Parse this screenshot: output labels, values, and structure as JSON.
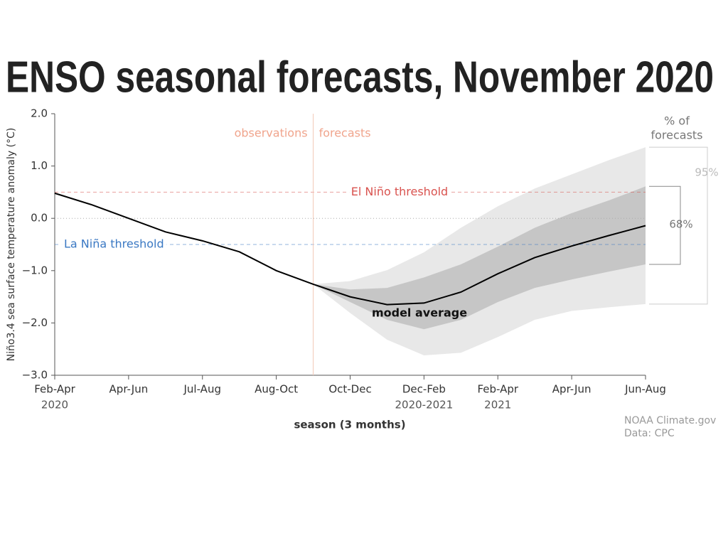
{
  "chart_data": {
    "type": "line",
    "title": "ENSO seasonal forecasts, November 2020",
    "ylabel": "Niño3.4 sea surface temperature anomaly (°C)",
    "xlabel": "season (3 months)",
    "categories": [
      "Feb-Apr",
      null,
      "Apr-Jun",
      null,
      "Jul-Aug",
      null,
      "Aug-Oct",
      null,
      "Oct-Dec",
      null,
      "Dec-Feb",
      null,
      "Feb-Apr",
      null,
      "Apr-Jun",
      null,
      "Jun-Aug"
    ],
    "category_years": [
      "2020",
      null,
      null,
      null,
      null,
      null,
      null,
      null,
      null,
      null,
      "2020-2021",
      null,
      "2021",
      null,
      null,
      null,
      null
    ],
    "series": [
      {
        "name": "model average",
        "color": "#000000",
        "values": [
          0.48,
          0.26,
          0.0,
          -0.26,
          -0.43,
          -0.64,
          -1.0,
          -1.26,
          -1.5,
          -1.65,
          -1.62,
          -1.41,
          -1.06,
          -0.75,
          -0.53,
          -0.33,
          -0.14
        ]
      }
    ],
    "bands": [
      {
        "name": "95%",
        "color": "#e8e8e8",
        "high": [
          null,
          null,
          null,
          null,
          null,
          null,
          null,
          -1.26,
          -1.2,
          -0.99,
          -0.65,
          -0.18,
          0.23,
          0.57,
          0.84,
          1.11,
          1.36
        ],
        "low": [
          null,
          null,
          null,
          null,
          null,
          null,
          null,
          -1.26,
          -1.81,
          -2.32,
          -2.62,
          -2.57,
          -2.27,
          -1.94,
          -1.77,
          -1.7,
          -1.64
        ]
      },
      {
        "name": "68%",
        "color": "#c6c6c6",
        "high": [
          null,
          null,
          null,
          null,
          null,
          null,
          null,
          -1.26,
          -1.36,
          -1.33,
          -1.13,
          -0.88,
          -0.54,
          -0.18,
          0.1,
          0.34,
          0.61
        ],
        "low": [
          null,
          null,
          null,
          null,
          null,
          null,
          null,
          -1.26,
          -1.6,
          -1.94,
          -2.12,
          -1.94,
          -1.6,
          -1.33,
          -1.17,
          -1.02,
          -0.88
        ]
      }
    ],
    "thresholds": [
      {
        "name": "El Niño threshold",
        "value": 0.5,
        "color": "#d9534f"
      },
      {
        "name": "La Niña threshold",
        "value": -0.5,
        "color": "#3a78c3"
      }
    ],
    "observations_label": "observations",
    "forecasts_label": "forecasts",
    "legend_title": [
      "% of",
      "forecasts"
    ],
    "credit": [
      "NOAA Climate.gov",
      "Data: CPC"
    ],
    "ylim": [
      -3,
      2
    ],
    "yticks": [
      {
        "value": -3,
        "label": "−3.0"
      },
      {
        "value": -2,
        "label": "−2.0"
      },
      {
        "value": -1,
        "label": "−1.0"
      },
      {
        "value": 0,
        "label": "0.0"
      },
      {
        "value": 1,
        "label": "1.0"
      },
      {
        "value": 2,
        "label": "2.0"
      }
    ],
    "zero_line": true
  }
}
